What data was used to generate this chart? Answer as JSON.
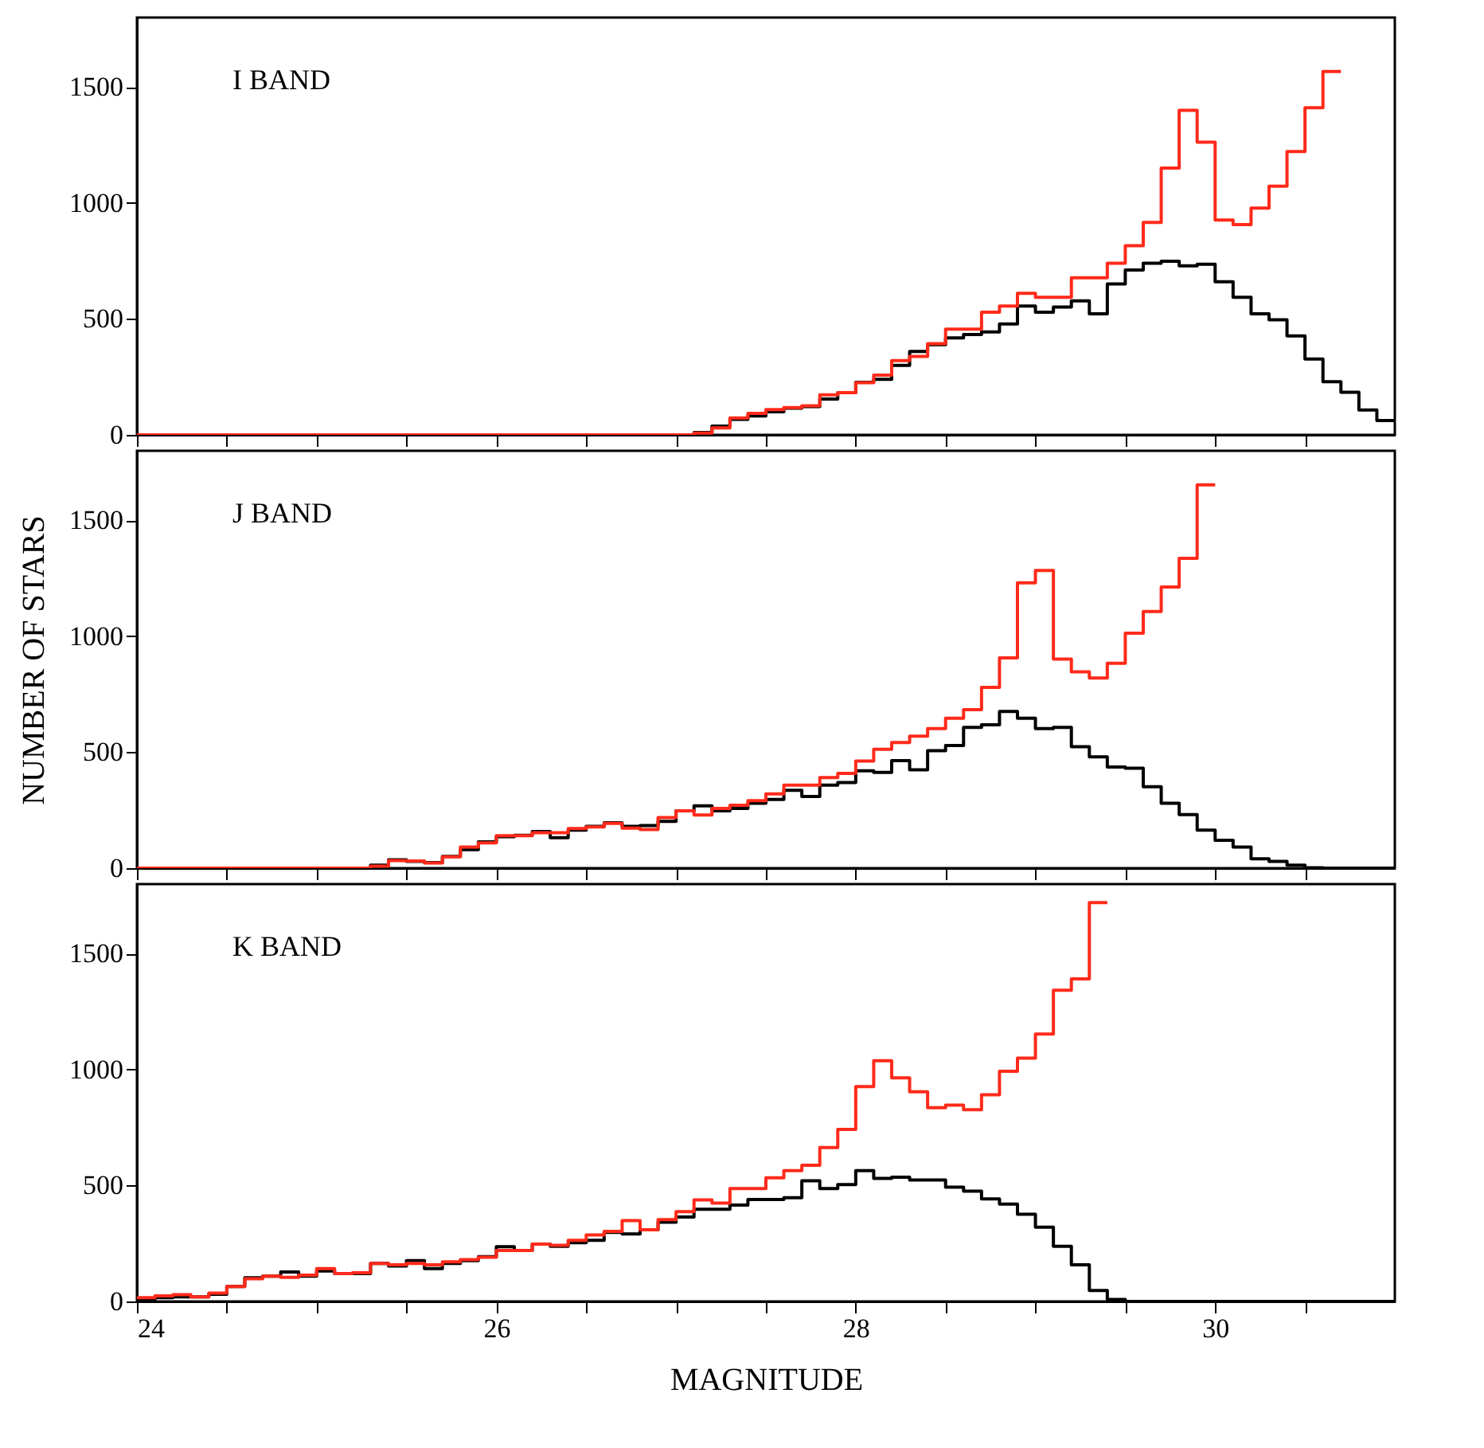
{
  "chart_data": [
    {
      "type": "histogram",
      "annotations": [
        "I BAND"
      ],
      "tick_labels": "y",
      "xlim": [
        24,
        31
      ],
      "ylim": [
        0,
        1800
      ],
      "xticks": [
        24,
        {
          "value": 24.5,
          "label": null
        },
        {
          "value": 25,
          "label": null
        },
        {
          "value": 25.5,
          "label": null
        },
        26,
        {
          "value": 26.5,
          "label": null
        },
        {
          "value": 27,
          "label": null
        },
        {
          "value": 27.5,
          "label": null
        },
        28,
        {
          "value": 28.5,
          "label": null
        },
        {
          "value": 29,
          "label": null
        },
        {
          "value": 29.5,
          "label": null
        },
        30,
        {
          "value": 30.5,
          "label": null
        }
      ],
      "yticks": [
        0,
        500,
        1000,
        1500
      ],
      "bins": [
        24.0,
        24.1,
        24.2,
        24.3,
        24.4,
        24.5,
        24.6,
        24.7,
        24.8,
        24.9,
        25.0,
        25.1,
        25.2,
        25.3,
        25.4,
        25.5,
        25.6,
        25.7,
        25.8,
        25.9,
        26.0,
        26.1,
        26.2,
        26.3,
        26.4,
        26.5,
        26.6,
        26.7,
        26.8,
        26.9,
        27.0,
        27.1,
        27.2,
        27.3,
        27.4,
        27.5,
        27.6,
        27.7,
        27.8,
        27.9,
        28.0,
        28.1,
        28.2,
        28.3,
        28.4,
        28.5,
        28.6,
        28.7,
        28.8,
        28.9,
        29.0,
        29.1,
        29.2,
        29.3,
        29.4,
        29.5,
        29.6,
        29.7,
        29.8,
        29.9,
        30.0,
        30.1,
        30.2,
        30.3,
        30.4,
        30.5,
        30.6,
        30.7,
        30.8,
        30.9,
        31.0
      ],
      "series": [
        {
          "color": "#000000",
          "values": [
            0,
            0,
            0,
            0,
            0,
            0,
            0,
            0,
            0,
            0,
            0,
            0,
            0,
            0,
            0,
            0,
            0,
            0,
            0,
            0,
            0,
            0,
            0,
            0,
            0,
            0,
            0,
            0,
            0,
            0,
            0,
            10,
            38,
            67,
            82,
            100,
            115,
            122,
            155,
            182,
            227,
            240,
            300,
            360,
            389,
            418,
            433,
            444,
            478,
            556,
            529,
            551,
            578,
            522,
            651,
            711,
            740,
            749,
            729,
            736,
            660,
            593,
            522,
            496,
            427,
            327,
            229,
            184,
            107,
            62
          ]
        },
        {
          "color": "#ff2a1a",
          "bins": [
            24.0,
            24.1,
            24.2,
            24.3,
            24.4,
            24.5,
            24.6,
            24.7,
            24.8,
            24.9,
            25.0,
            25.1,
            25.2,
            25.3,
            25.4,
            25.5,
            25.6,
            25.7,
            25.8,
            25.9,
            26.0,
            26.1,
            26.2,
            26.3,
            26.4,
            26.5,
            26.6,
            26.7,
            26.8,
            26.9,
            27.0,
            27.1,
            27.2,
            27.3,
            27.4,
            27.5,
            27.6,
            27.7,
            27.8,
            27.9,
            28.0,
            28.1,
            28.2,
            28.3,
            28.4,
            28.5,
            28.6,
            28.7,
            28.8,
            28.9,
            29.0,
            29.1,
            29.2,
            29.3,
            29.4,
            29.5,
            29.6,
            29.7,
            29.8,
            29.9,
            30.0,
            30.1,
            30.2,
            30.3,
            30.4,
            30.5,
            30.6,
            30.7
          ],
          "values": [
            0,
            0,
            0,
            0,
            0,
            0,
            0,
            0,
            0,
            0,
            0,
            0,
            0,
            0,
            0,
            0,
            0,
            0,
            0,
            0,
            0,
            0,
            0,
            0,
            0,
            0,
            0,
            0,
            0,
            0,
            0,
            8,
            30,
            73,
            93,
            109,
            118,
            125,
            173,
            182,
            225,
            258,
            320,
            338,
            393,
            456,
            456,
            529,
            556,
            611,
            593,
            593,
            678,
            678,
            740,
            816,
            916,
            1151,
            1400,
            1262,
            927,
            907,
            978,
            1073,
            1222,
            1411,
            1567
          ]
        }
      ]
    },
    {
      "type": "histogram",
      "annotations": [
        "J BAND"
      ],
      "ylabel": "NUMBER OF STARS",
      "tick_labels": "y",
      "xlim": [
        24,
        31
      ],
      "ylim": [
        0,
        1800
      ],
      "xticks": [
        24,
        {
          "value": 24.5,
          "label": null
        },
        {
          "value": 25,
          "label": null
        },
        {
          "value": 25.5,
          "label": null
        },
        26,
        {
          "value": 26.5,
          "label": null
        },
        {
          "value": 27,
          "label": null
        },
        {
          "value": 27.5,
          "label": null
        },
        28,
        {
          "value": 28.5,
          "label": null
        },
        {
          "value": 29,
          "label": null
        },
        {
          "value": 29.5,
          "label": null
        },
        30,
        {
          "value": 30.5,
          "label": null
        }
      ],
      "yticks": [
        0,
        500,
        1000,
        1500
      ],
      "bins": [
        24.0,
        24.1,
        24.2,
        24.3,
        24.4,
        24.5,
        24.6,
        24.7,
        24.8,
        24.9,
        25.0,
        25.1,
        25.2,
        25.3,
        25.4,
        25.5,
        25.6,
        25.7,
        25.8,
        25.9,
        26.0,
        26.1,
        26.2,
        26.3,
        26.4,
        26.5,
        26.6,
        26.7,
        26.8,
        26.9,
        27.0,
        27.1,
        27.2,
        27.3,
        27.4,
        27.5,
        27.6,
        27.7,
        27.8,
        27.9,
        28.0,
        28.1,
        28.2,
        28.3,
        28.4,
        28.5,
        28.6,
        28.7,
        28.8,
        28.9,
        29.0,
        29.1,
        29.2,
        29.3,
        29.4,
        29.5,
        29.6,
        29.7,
        29.8,
        29.9,
        30.0,
        30.1,
        30.2,
        30.3,
        30.4,
        30.5,
        30.6,
        30.7,
        30.8,
        30.9,
        31.0
      ],
      "series": [
        {
          "color": "#000000",
          "values": [
            0,
            0,
            0,
            0,
            0,
            0,
            0,
            0,
            0,
            0,
            0,
            0,
            0,
            13,
            36,
            29,
            24,
            51,
            80,
            113,
            136,
            142,
            158,
            131,
            164,
            180,
            196,
            180,
            184,
            202,
            247,
            269,
            247,
            258,
            280,
            296,
            336,
            309,
            358,
            369,
            420,
            413,
            464,
            424,
            507,
            529,
            607,
            618,
            676,
            647,
            602,
            607,
            524,
            480,
            436,
            431,
            351,
            280,
            231,
            164,
            120,
            91,
            40,
            29,
            13,
            2,
            0,
            0,
            0,
            0
          ]
        },
        {
          "color": "#ff2a1a",
          "bins": [
            24.0,
            24.1,
            24.2,
            24.3,
            24.4,
            24.5,
            24.6,
            24.7,
            24.8,
            24.9,
            25.0,
            25.1,
            25.2,
            25.3,
            25.4,
            25.5,
            25.6,
            25.7,
            25.8,
            25.9,
            26.0,
            26.1,
            26.2,
            26.3,
            26.4,
            26.5,
            26.6,
            26.7,
            26.8,
            26.9,
            27.0,
            27.1,
            27.2,
            27.3,
            27.4,
            27.5,
            27.6,
            27.7,
            27.8,
            27.9,
            28.0,
            28.1,
            28.2,
            28.3,
            28.4,
            28.5,
            28.6,
            28.7,
            28.8,
            28.9,
            29.0,
            29.1,
            29.2,
            29.3,
            29.4,
            29.5,
            29.6,
            29.7,
            29.8,
            29.9,
            30.0
          ],
          "values": [
            0,
            0,
            0,
            0,
            0,
            0,
            0,
            0,
            0,
            0,
            0,
            0,
            0,
            9,
            33,
            31,
            22,
            49,
            91,
            109,
            140,
            140,
            153,
            153,
            171,
            178,
            193,
            173,
            167,
            218,
            247,
            229,
            258,
            271,
            291,
            320,
            358,
            358,
            391,
            409,
            462,
            513,
            542,
            569,
            602,
            647,
            684,
            780,
            907,
            1231,
            1284,
            902,
            847,
            820,
            884,
            1013,
            1107,
            1213,
            1336,
            1653
          ]
        }
      ]
    },
    {
      "type": "histogram",
      "annotations": [
        "K BAND"
      ],
      "xlabel": "MAGNITUDE",
      "xlim": [
        24,
        31
      ],
      "ylim": [
        0,
        1800
      ],
      "xticks": [
        24,
        {
          "value": 24.5,
          "label": null
        },
        {
          "value": 25,
          "label": null
        },
        {
          "value": 25.5,
          "label": null
        },
        26,
        {
          "value": 26.5,
          "label": null
        },
        {
          "value": 27,
          "label": null
        },
        {
          "value": 27.5,
          "label": null
        },
        28,
        {
          "value": 28.5,
          "label": null
        },
        {
          "value": 29,
          "label": null
        },
        {
          "value": 29.5,
          "label": null
        },
        30,
        {
          "value": 30.5,
          "label": null
        }
      ],
      "yticks": [
        0,
        500,
        1000,
        1500
      ],
      "bins": [
        24.0,
        24.1,
        24.2,
        24.3,
        24.4,
        24.5,
        24.6,
        24.7,
        24.8,
        24.9,
        25.0,
        25.1,
        25.2,
        25.3,
        25.4,
        25.5,
        25.6,
        25.7,
        25.8,
        25.9,
        26.0,
        26.1,
        26.2,
        26.3,
        26.4,
        26.5,
        26.6,
        26.7,
        26.8,
        26.9,
        27.0,
        27.1,
        27.2,
        27.3,
        27.4,
        27.5,
        27.6,
        27.7,
        27.8,
        27.9,
        28.0,
        28.1,
        28.2,
        28.3,
        28.4,
        28.5,
        28.6,
        28.7,
        28.8,
        28.9,
        29.0,
        29.1,
        29.2,
        29.3,
        29.4,
        29.5,
        29.6,
        29.7,
        29.8,
        29.9,
        30.0,
        30.1,
        30.2,
        30.3,
        30.4,
        30.5,
        30.6,
        30.7,
        30.8,
        30.9,
        31.0
      ],
      "series": [
        {
          "color": "#000000",
          "values": [
            9,
            16,
            20,
            20,
            31,
            64,
            102,
            109,
            127,
            109,
            131,
            120,
            120,
            164,
            153,
            176,
            142,
            164,
            176,
            193,
            236,
            220,
            247,
            238,
            253,
            264,
            298,
            291,
            309,
            342,
            364,
            398,
            398,
            416,
            440,
            440,
            447,
            520,
            487,
            504,
            564,
            531,
            536,
            524,
            524,
            493,
            476,
            442,
            420,
            376,
            320,
            238,
            158,
            47,
            9,
            0,
            0,
            0,
            0,
            0,
            0,
            0,
            0,
            0,
            0,
            0,
            0,
            0,
            0,
            0
          ]
        },
        {
          "color": "#ff2a1a",
          "bins": [
            24.0,
            24.1,
            24.2,
            24.3,
            24.4,
            24.5,
            24.6,
            24.7,
            24.8,
            24.9,
            25.0,
            25.1,
            25.2,
            25.3,
            25.4,
            25.5,
            25.6,
            25.7,
            25.8,
            25.9,
            26.0,
            26.1,
            26.2,
            26.3,
            26.4,
            26.5,
            26.6,
            26.7,
            26.8,
            26.9,
            27.0,
            27.1,
            27.2,
            27.3,
            27.4,
            27.5,
            27.6,
            27.7,
            27.8,
            27.9,
            28.0,
            28.1,
            28.2,
            28.3,
            28.4,
            28.5,
            28.6,
            28.7,
            28.8,
            28.9,
            29.0,
            29.1,
            29.2,
            29.3,
            29.4
          ],
          "values": [
            16,
            24,
            29,
            20,
            36,
            64,
            98,
            109,
            104,
            113,
            142,
            120,
            124,
            164,
            158,
            164,
            158,
            171,
            180,
            191,
            220,
            220,
            247,
            242,
            264,
            287,
            302,
            349,
            309,
            353,
            387,
            438,
            424,
            487,
            487,
            533,
            564,
            587,
            664,
            742,
            927,
            1038,
            964,
            904,
            836,
            847,
            827,
            891,
            993,
            1049,
            1153,
            1342,
            1391,
            1720
          ]
        }
      ]
    }
  ]
}
